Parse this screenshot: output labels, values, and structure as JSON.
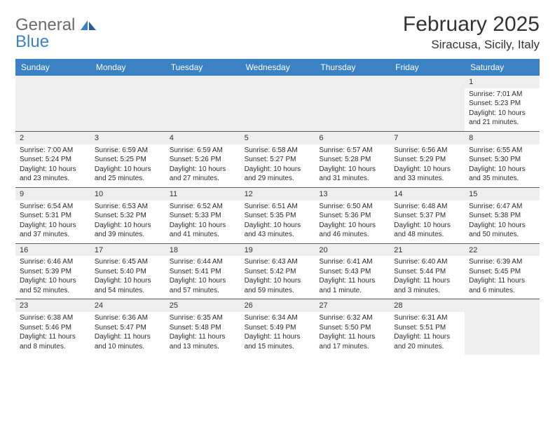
{
  "brand": {
    "part1": "General",
    "part2": "Blue"
  },
  "title": "February 2025",
  "location": "Siracusa, Sicily, Italy",
  "colors": {
    "header_bg": "#3b82c4",
    "header_text": "#ffffff",
    "band_bg": "#eeeeee",
    "rule": "#5a5a5a",
    "text": "#2a2a2a"
  },
  "daynames": [
    "Sunday",
    "Monday",
    "Tuesday",
    "Wednesday",
    "Thursday",
    "Friday",
    "Saturday"
  ],
  "weeks": [
    [
      null,
      null,
      null,
      null,
      null,
      null,
      {
        "n": "1",
        "sr": "Sunrise: 7:01 AM",
        "ss": "Sunset: 5:23 PM",
        "dl1": "Daylight: 10 hours",
        "dl2": "and 21 minutes."
      }
    ],
    [
      {
        "n": "2",
        "sr": "Sunrise: 7:00 AM",
        "ss": "Sunset: 5:24 PM",
        "dl1": "Daylight: 10 hours",
        "dl2": "and 23 minutes."
      },
      {
        "n": "3",
        "sr": "Sunrise: 6:59 AM",
        "ss": "Sunset: 5:25 PM",
        "dl1": "Daylight: 10 hours",
        "dl2": "and 25 minutes."
      },
      {
        "n": "4",
        "sr": "Sunrise: 6:59 AM",
        "ss": "Sunset: 5:26 PM",
        "dl1": "Daylight: 10 hours",
        "dl2": "and 27 minutes."
      },
      {
        "n": "5",
        "sr": "Sunrise: 6:58 AM",
        "ss": "Sunset: 5:27 PM",
        "dl1": "Daylight: 10 hours",
        "dl2": "and 29 minutes."
      },
      {
        "n": "6",
        "sr": "Sunrise: 6:57 AM",
        "ss": "Sunset: 5:28 PM",
        "dl1": "Daylight: 10 hours",
        "dl2": "and 31 minutes."
      },
      {
        "n": "7",
        "sr": "Sunrise: 6:56 AM",
        "ss": "Sunset: 5:29 PM",
        "dl1": "Daylight: 10 hours",
        "dl2": "and 33 minutes."
      },
      {
        "n": "8",
        "sr": "Sunrise: 6:55 AM",
        "ss": "Sunset: 5:30 PM",
        "dl1": "Daylight: 10 hours",
        "dl2": "and 35 minutes."
      }
    ],
    [
      {
        "n": "9",
        "sr": "Sunrise: 6:54 AM",
        "ss": "Sunset: 5:31 PM",
        "dl1": "Daylight: 10 hours",
        "dl2": "and 37 minutes."
      },
      {
        "n": "10",
        "sr": "Sunrise: 6:53 AM",
        "ss": "Sunset: 5:32 PM",
        "dl1": "Daylight: 10 hours",
        "dl2": "and 39 minutes."
      },
      {
        "n": "11",
        "sr": "Sunrise: 6:52 AM",
        "ss": "Sunset: 5:33 PM",
        "dl1": "Daylight: 10 hours",
        "dl2": "and 41 minutes."
      },
      {
        "n": "12",
        "sr": "Sunrise: 6:51 AM",
        "ss": "Sunset: 5:35 PM",
        "dl1": "Daylight: 10 hours",
        "dl2": "and 43 minutes."
      },
      {
        "n": "13",
        "sr": "Sunrise: 6:50 AM",
        "ss": "Sunset: 5:36 PM",
        "dl1": "Daylight: 10 hours",
        "dl2": "and 46 minutes."
      },
      {
        "n": "14",
        "sr": "Sunrise: 6:48 AM",
        "ss": "Sunset: 5:37 PM",
        "dl1": "Daylight: 10 hours",
        "dl2": "and 48 minutes."
      },
      {
        "n": "15",
        "sr": "Sunrise: 6:47 AM",
        "ss": "Sunset: 5:38 PM",
        "dl1": "Daylight: 10 hours",
        "dl2": "and 50 minutes."
      }
    ],
    [
      {
        "n": "16",
        "sr": "Sunrise: 6:46 AM",
        "ss": "Sunset: 5:39 PM",
        "dl1": "Daylight: 10 hours",
        "dl2": "and 52 minutes."
      },
      {
        "n": "17",
        "sr": "Sunrise: 6:45 AM",
        "ss": "Sunset: 5:40 PM",
        "dl1": "Daylight: 10 hours",
        "dl2": "and 54 minutes."
      },
      {
        "n": "18",
        "sr": "Sunrise: 6:44 AM",
        "ss": "Sunset: 5:41 PM",
        "dl1": "Daylight: 10 hours",
        "dl2": "and 57 minutes."
      },
      {
        "n": "19",
        "sr": "Sunrise: 6:43 AM",
        "ss": "Sunset: 5:42 PM",
        "dl1": "Daylight: 10 hours",
        "dl2": "and 59 minutes."
      },
      {
        "n": "20",
        "sr": "Sunrise: 6:41 AM",
        "ss": "Sunset: 5:43 PM",
        "dl1": "Daylight: 11 hours",
        "dl2": "and 1 minute."
      },
      {
        "n": "21",
        "sr": "Sunrise: 6:40 AM",
        "ss": "Sunset: 5:44 PM",
        "dl1": "Daylight: 11 hours",
        "dl2": "and 3 minutes."
      },
      {
        "n": "22",
        "sr": "Sunrise: 6:39 AM",
        "ss": "Sunset: 5:45 PM",
        "dl1": "Daylight: 11 hours",
        "dl2": "and 6 minutes."
      }
    ],
    [
      {
        "n": "23",
        "sr": "Sunrise: 6:38 AM",
        "ss": "Sunset: 5:46 PM",
        "dl1": "Daylight: 11 hours",
        "dl2": "and 8 minutes."
      },
      {
        "n": "24",
        "sr": "Sunrise: 6:36 AM",
        "ss": "Sunset: 5:47 PM",
        "dl1": "Daylight: 11 hours",
        "dl2": "and 10 minutes."
      },
      {
        "n": "25",
        "sr": "Sunrise: 6:35 AM",
        "ss": "Sunset: 5:48 PM",
        "dl1": "Daylight: 11 hours",
        "dl2": "and 13 minutes."
      },
      {
        "n": "26",
        "sr": "Sunrise: 6:34 AM",
        "ss": "Sunset: 5:49 PM",
        "dl1": "Daylight: 11 hours",
        "dl2": "and 15 minutes."
      },
      {
        "n": "27",
        "sr": "Sunrise: 6:32 AM",
        "ss": "Sunset: 5:50 PM",
        "dl1": "Daylight: 11 hours",
        "dl2": "and 17 minutes."
      },
      {
        "n": "28",
        "sr": "Sunrise: 6:31 AM",
        "ss": "Sunset: 5:51 PM",
        "dl1": "Daylight: 11 hours",
        "dl2": "and 20 minutes."
      },
      null
    ]
  ]
}
